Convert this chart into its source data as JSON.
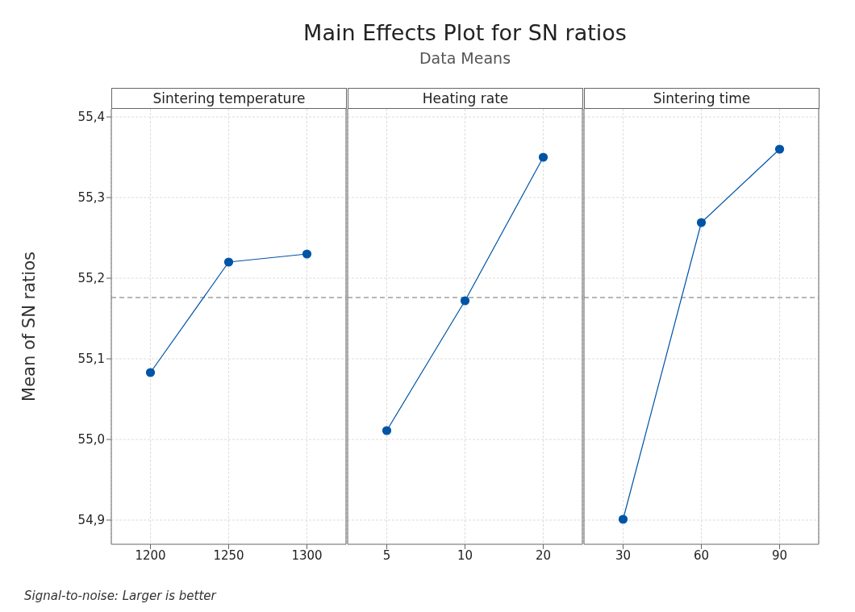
{
  "chart_data": [
    {
      "type": "line",
      "xlabel": "Sintering temperature",
      "ylabel": "Mean of SN ratios",
      "categories": [
        "1200",
        "1250",
        "1300"
      ],
      "values": [
        55.083,
        55.22,
        55.23
      ],
      "color": "#0054a6",
      "marker": "circle",
      "line_style": "solid",
      "ylim": [
        54.87,
        55.41
      ],
      "yticks": [
        {
          "value": 54.9,
          "label": "54,9"
        },
        {
          "value": 55.0,
          "label": "55,0"
        },
        {
          "value": 55.1,
          "label": "55,1"
        },
        {
          "value": 55.2,
          "label": "55,2"
        },
        {
          "value": 55.3,
          "label": "55,3"
        },
        {
          "value": 55.4,
          "label": "55,4"
        }
      ],
      "grid": true,
      "ref_lines": [
        {
          "axis": "y",
          "value": 55.176,
          "color": "#a0a0a0",
          "line_style": "dashed"
        }
      ],
      "annotations": [
        "Signal-to-noise: Larger is better"
      ]
    },
    {
      "type": "line",
      "title": "Main Effects Plot for SN ratios",
      "subtitle": "Data Means",
      "xlabel": "Heating rate",
      "categories": [
        "5",
        "10",
        "20"
      ],
      "values": [
        55.011,
        55.172,
        55.35
      ],
      "color": "#0054a6",
      "marker": "circle",
      "line_style": "solid",
      "ylim": [
        54.87,
        55.41
      ],
      "yticks": [
        54.9,
        55.0,
        55.1,
        55.2,
        55.3,
        55.4
      ],
      "grid": true,
      "tick_labels": "x",
      "ref_lines": [
        {
          "axis": "y",
          "value": 55.176,
          "color": "#a0a0a0",
          "line_style": "dashed"
        }
      ]
    },
    {
      "type": "line",
      "xlabel": "Sintering time",
      "categories": [
        "30",
        "60",
        "90"
      ],
      "values": [
        54.901,
        55.269,
        55.36
      ],
      "color": "#0054a6",
      "marker": "circle",
      "line_style": "solid",
      "ylim": [
        54.87,
        55.41
      ],
      "yticks": [
        54.9,
        55.0,
        55.1,
        55.2,
        55.3,
        55.4
      ],
      "grid": true,
      "tick_labels": "x",
      "ref_lines": [
        {
          "axis": "y",
          "value": 55.176,
          "color": "#a0a0a0",
          "line_style": "dashed"
        }
      ]
    }
  ]
}
